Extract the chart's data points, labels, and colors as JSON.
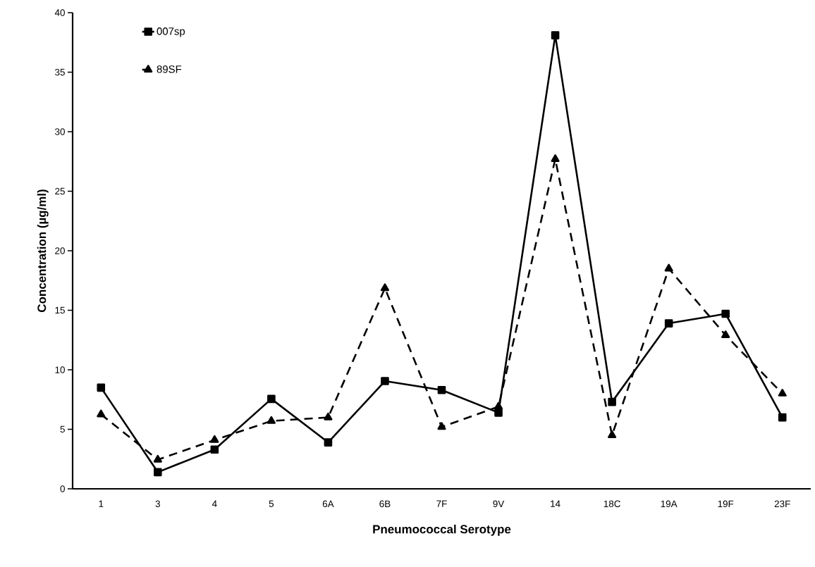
{
  "chart_data": {
    "type": "line",
    "xlabel": "Pneumococcal Serotype",
    "ylabel": "Concentration (µg/ml)",
    "categories": [
      "1",
      "3",
      "4",
      "5",
      "6A",
      "6B",
      "7F",
      "9V",
      "14",
      "18C",
      "19A",
      "19F",
      "23F"
    ],
    "series": [
      {
        "name": "007sp",
        "color": "#000000",
        "marker": "square",
        "line_style": "solid",
        "values": [
          8.5,
          1.4,
          3.3,
          7.55,
          3.9,
          9.05,
          8.3,
          6.4,
          38.1,
          7.3,
          13.9,
          14.7,
          6.0
        ]
      },
      {
        "name": "89SF",
        "color": "#000000",
        "marker": "triangle",
        "line_style": "dashed",
        "values": [
          6.25,
          2.45,
          4.1,
          5.7,
          6.0,
          16.85,
          5.2,
          6.9,
          27.7,
          4.5,
          18.5,
          12.9,
          8.0
        ]
      }
    ],
    "ylim": [
      0,
      40
    ],
    "yticks": [
      0,
      5,
      10,
      15,
      20,
      25,
      30,
      35,
      40
    ],
    "grid": false,
    "legend": "top left"
  }
}
